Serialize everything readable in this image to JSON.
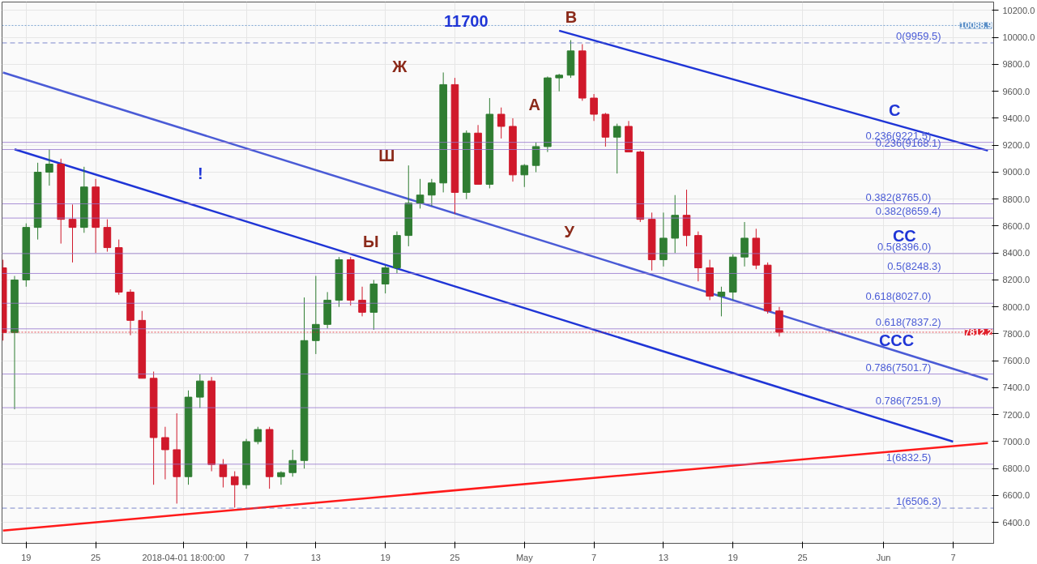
{
  "chart_data": {
    "type": "candlestick",
    "x": [
      "2018-03-17",
      "2018-03-18",
      "2018-03-19",
      "2018-03-20",
      "2018-03-21",
      "2018-03-22",
      "2018-03-23",
      "2018-03-24",
      "2018-03-25",
      "2018-03-26",
      "2018-03-27",
      "2018-03-28",
      "2018-03-29",
      "2018-03-30",
      "2018-03-31",
      "2018-04-01",
      "2018-04-02",
      "2018-04-03",
      "2018-04-04",
      "2018-04-05",
      "2018-04-06",
      "2018-04-07",
      "2018-04-08",
      "2018-04-09",
      "2018-04-10",
      "2018-04-11",
      "2018-04-12",
      "2018-04-13",
      "2018-04-14",
      "2018-04-15",
      "2018-04-16",
      "2018-04-17",
      "2018-04-18",
      "2018-04-19",
      "2018-04-20",
      "2018-04-21",
      "2018-04-22",
      "2018-04-23",
      "2018-04-24",
      "2018-04-25",
      "2018-04-26",
      "2018-04-27",
      "2018-04-28",
      "2018-04-29",
      "2018-04-30",
      "2018-05-01",
      "2018-05-02",
      "2018-05-03",
      "2018-05-04",
      "2018-05-05",
      "2018-05-06",
      "2018-05-07",
      "2018-05-08",
      "2018-05-09",
      "2018-05-10",
      "2018-05-11",
      "2018-05-12",
      "2018-05-13",
      "2018-05-14",
      "2018-05-15",
      "2018-05-16",
      "2018-05-17",
      "2018-05-18",
      "2018-05-19",
      "2018-05-20",
      "2018-05-21",
      "2018-05-22",
      "2018-05-23"
    ],
    "ohlc": [
      [
        8290,
        8350,
        7750,
        7810
      ],
      [
        7810,
        8230,
        7240,
        8200
      ],
      [
        8200,
        8620,
        8150,
        8590
      ],
      [
        8590,
        9070,
        8500,
        9000
      ],
      [
        9000,
        9170,
        8900,
        9060
      ],
      [
        9060,
        9100,
        8470,
        8650
      ],
      [
        8650,
        8760,
        8330,
        8590
      ],
      [
        8590,
        9040,
        8550,
        8890
      ],
      [
        8890,
        8950,
        8400,
        8590
      ],
      [
        8590,
        8650,
        8410,
        8440
      ],
      [
        8440,
        8500,
        8090,
        8110
      ],
      [
        8110,
        8130,
        7790,
        7900
      ],
      [
        7900,
        7970,
        7470,
        7470
      ],
      [
        7470,
        7520,
        6680,
        7030
      ],
      [
        7030,
        7110,
        6720,
        6940
      ],
      [
        6940,
        7210,
        6540,
        6740
      ],
      [
        6740,
        7380,
        6680,
        7330
      ],
      [
        7330,
        7500,
        7250,
        7450
      ],
      [
        7450,
        7480,
        6780,
        6830
      ],
      [
        6830,
        6870,
        6660,
        6740
      ],
      [
        6740,
        6780,
        6510,
        6680
      ],
      [
        6680,
        7020,
        6650,
        7000
      ],
      [
        7000,
        7110,
        6980,
        7090
      ],
      [
        7090,
        7110,
        6650,
        6740
      ],
      [
        6740,
        6780,
        6680,
        6770
      ],
      [
        6770,
        6940,
        6740,
        6860
      ],
      [
        6860,
        8070,
        6800,
        7750
      ],
      [
        7750,
        8230,
        7650,
        7870
      ],
      [
        7870,
        8110,
        7840,
        8050
      ],
      [
        8050,
        8370,
        8000,
        8350
      ],
      [
        8350,
        8370,
        8010,
        8050
      ],
      [
        8050,
        8150,
        7930,
        7960
      ],
      [
        7960,
        8200,
        7830,
        8170
      ],
      [
        8170,
        8310,
        8100,
        8290
      ],
      [
        8290,
        8560,
        8250,
        8530
      ],
      [
        8530,
        9050,
        8450,
        8770
      ],
      [
        8770,
        8950,
        8730,
        8830
      ],
      [
        8830,
        8950,
        8750,
        8920
      ],
      [
        8920,
        9740,
        8850,
        9650
      ],
      [
        9650,
        9700,
        8690,
        8850
      ],
      [
        8850,
        9310,
        8800,
        9290
      ],
      [
        9290,
        9350,
        8910,
        8910
      ],
      [
        8910,
        9550,
        8880,
        9430
      ],
      [
        9430,
        9480,
        9250,
        9340
      ],
      [
        9340,
        9400,
        8930,
        8980
      ],
      [
        8980,
        9060,
        8890,
        9050
      ],
      [
        9050,
        9220,
        9000,
        9190
      ],
      [
        9190,
        9710,
        9150,
        9700
      ],
      [
        9700,
        9730,
        9600,
        9720
      ],
      [
        9720,
        9980,
        9700,
        9900
      ],
      [
        9900,
        9950,
        9530,
        9550
      ],
      [
        9550,
        9580,
        9380,
        9430
      ],
      [
        9430,
        9440,
        9190,
        9260
      ],
      [
        9260,
        9360,
        8990,
        9340
      ],
      [
        9340,
        9380,
        9150,
        9150
      ],
      [
        9150,
        9160,
        8630,
        8650
      ],
      [
        8650,
        8700,
        8270,
        8350
      ],
      [
        8350,
        8700,
        8300,
        8510
      ],
      [
        8510,
        8830,
        8400,
        8680
      ],
      [
        8680,
        8870,
        8450,
        8530
      ],
      [
        8530,
        8560,
        8190,
        8290
      ],
      [
        8290,
        8350,
        8050,
        8080
      ],
      [
        8080,
        8150,
        7930,
        8110
      ],
      [
        8110,
        8390,
        8050,
        8370
      ],
      [
        8370,
        8630,
        8300,
        8510
      ],
      [
        8510,
        8580,
        8280,
        8310
      ],
      [
        8310,
        8330,
        7950,
        7970
      ],
      [
        7970,
        8000,
        7780,
        7812.2
      ]
    ],
    "series": [
      {
        "type": "line",
        "color": "#ff1a1a",
        "x": [
          "2018-03-17",
          "2018-06-10"
        ],
        "values": [
          6340,
          6990
        ]
      },
      {
        "type": "line",
        "color": "#1f35d6",
        "x": [
          "2018-03-18",
          "2018-06-07"
        ],
        "values": [
          9170,
          7000
        ]
      },
      {
        "type": "line",
        "color": "#1f35d6",
        "x": [
          "2018-05-04",
          "2018-06-10"
        ],
        "values": [
          10050,
          9160
        ]
      },
      {
        "type": "line",
        "color": "#4a5bd6",
        "x": [
          "2018-03-17",
          "2018-06-10"
        ],
        "values": [
          9740,
          7460
        ]
      }
    ],
    "ref_lines": [
      {
        "axis": "y",
        "value": 9959.5,
        "label": "0(9959.5)",
        "color": "#5c6bc0",
        "line_style": "dashed"
      },
      {
        "axis": "y",
        "value": 9221.5,
        "label": "0.236(9221.5)",
        "color": "#9575cd"
      },
      {
        "axis": "y",
        "value": 9168.1,
        "label": "0.236(9168.1)",
        "color": "#9575cd"
      },
      {
        "axis": "y",
        "value": 8765.0,
        "label": "0.382(8765.0)",
        "color": "#9575cd"
      },
      {
        "axis": "y",
        "value": 8659.4,
        "label": "0.382(8659.4)",
        "color": "#9575cd"
      },
      {
        "axis": "y",
        "value": 8396.0,
        "label": "0.5(8396.0)",
        "color": "#9575cd"
      },
      {
        "axis": "y",
        "value": 8248.3,
        "label": "0.5(8248.3)",
        "color": "#9575cd"
      },
      {
        "axis": "y",
        "value": 8027.0,
        "label": "0.618(8027.0)",
        "color": "#9575cd"
      },
      {
        "axis": "y",
        "value": 7837.2,
        "label": "0.618(7837.2)",
        "color": "#9575cd"
      },
      {
        "axis": "y",
        "value": 7501.7,
        "label": "0.786(7501.7)",
        "color": "#9575cd"
      },
      {
        "axis": "y",
        "value": 7251.9,
        "label": "0.786(7251.9)",
        "color": "#9575cd"
      },
      {
        "axis": "y",
        "value": 6832.5,
        "label": "1(6832.5)",
        "color": "#9575cd"
      },
      {
        "axis": "y",
        "value": 6506.3,
        "label": "1(6506.3)",
        "color": "#5c6bc0",
        "line_style": "dashed"
      },
      {
        "axis": "y",
        "value": 10088.9,
        "label": "10088.9",
        "color": "#5b8fc7",
        "line_style": "dotted"
      },
      {
        "axis": "y",
        "value": 7812.2,
        "label": "7812.2",
        "color": "#e0202b",
        "line_style": "dotted"
      }
    ],
    "annotations": [
      "11700",
      "В",
      "Ж",
      "А",
      "Ш",
      "Ы",
      "У",
      "!",
      "С",
      "СС",
      "ССС"
    ],
    "xlim": [
      "2018-03-16T22:00",
      "2018-06-10T12:00"
    ],
    "ylim": [
      6245,
      10263
    ],
    "xticks": [
      {
        "value": "2018-03-19",
        "label": "19"
      },
      {
        "value": "2018-03-25",
        "label": "25"
      },
      {
        "value": "2018-04-01T14:00",
        "label": "2018-04-01 18:00:00"
      },
      {
        "value": "2018-04-07",
        "label": "7"
      },
      {
        "value": "2018-04-13",
        "label": "13"
      },
      {
        "value": "2018-04-19",
        "label": "19"
      },
      {
        "value": "2018-04-25",
        "label": "25"
      },
      {
        "value": "2018-05-01",
        "label": "May"
      },
      {
        "value": "2018-05-07",
        "label": "7"
      },
      {
        "value": "2018-05-13",
        "label": "13"
      },
      {
        "value": "2018-05-19",
        "label": "19"
      },
      {
        "value": "2018-05-25",
        "label": "25"
      },
      {
        "value": "2018-06-01",
        "label": "Jun"
      },
      {
        "value": "2018-06-07",
        "label": "7"
      }
    ],
    "yticks": [
      {
        "value": 6400,
        "label": "6400.0"
      },
      {
        "value": 6600,
        "label": "6600.0"
      },
      {
        "value": 6800,
        "label": "6800.0"
      },
      {
        "value": 7000,
        "label": "7000.0"
      },
      {
        "value": 7200,
        "label": "7200.0"
      },
      {
        "value": 7400,
        "label": "7400.0"
      },
      {
        "value": 7600,
        "label": "7600.0"
      },
      {
        "value": 7800,
        "label": "7800.0"
      },
      {
        "value": 8000,
        "label": "8000.0"
      },
      {
        "value": 8200,
        "label": "8200.0"
      },
      {
        "value": 8400,
        "label": "8400.0"
      },
      {
        "value": 8600,
        "label": "8600.0"
      },
      {
        "value": 8800,
        "label": "8800.0"
      },
      {
        "value": 9000,
        "label": "9000.0"
      },
      {
        "value": 9200,
        "label": "9200.0"
      },
      {
        "value": 9400,
        "label": "9400.0"
      },
      {
        "value": 9600,
        "label": "9600.0"
      },
      {
        "value": 9800,
        "label": "9800.0"
      },
      {
        "value": 10000,
        "label": "10000.0"
      },
      {
        "value": 10200,
        "label": "10200.0"
      }
    ],
    "grid": true
  }
}
